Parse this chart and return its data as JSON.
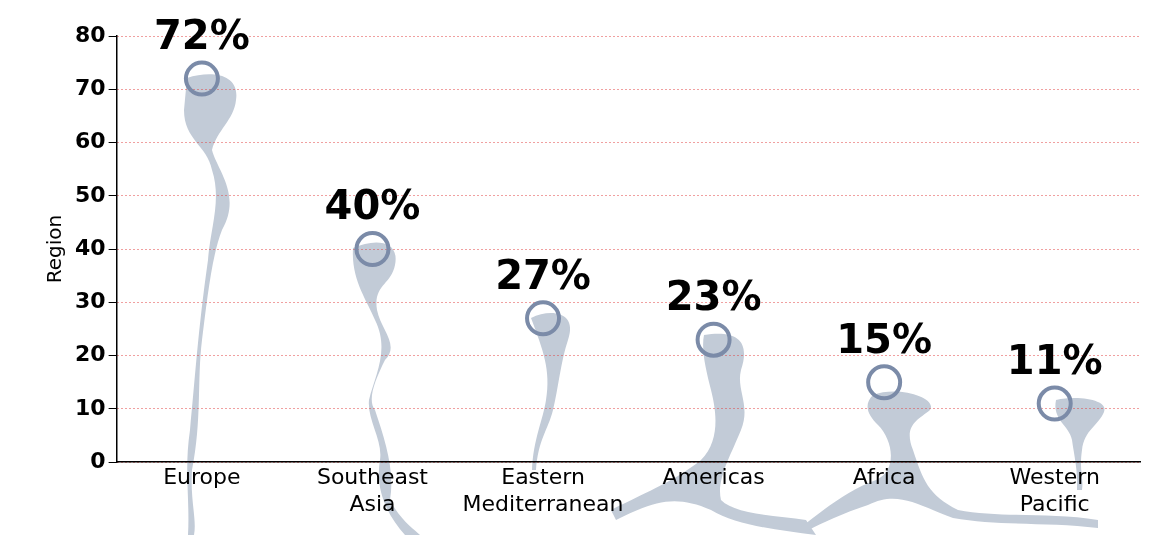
{
  "chart_data": {
    "type": "scatter",
    "ylabel": "Region",
    "categories": [
      "Europe",
      "Southeast Asia",
      "Eastern Mediterranean",
      "Americas",
      "Africa",
      "Western Pacific"
    ],
    "values": [
      72,
      40,
      27,
      23,
      15,
      11
    ],
    "value_labels": [
      "72%",
      "40%",
      "27%",
      "23%",
      "15%",
      "11%"
    ],
    "color": "#7b8ba8",
    "marker": "circle",
    "ylim": [
      0,
      80
    ],
    "yticks": [
      0,
      10,
      20,
      30,
      40,
      50,
      60,
      70,
      80
    ],
    "grid": "y"
  }
}
